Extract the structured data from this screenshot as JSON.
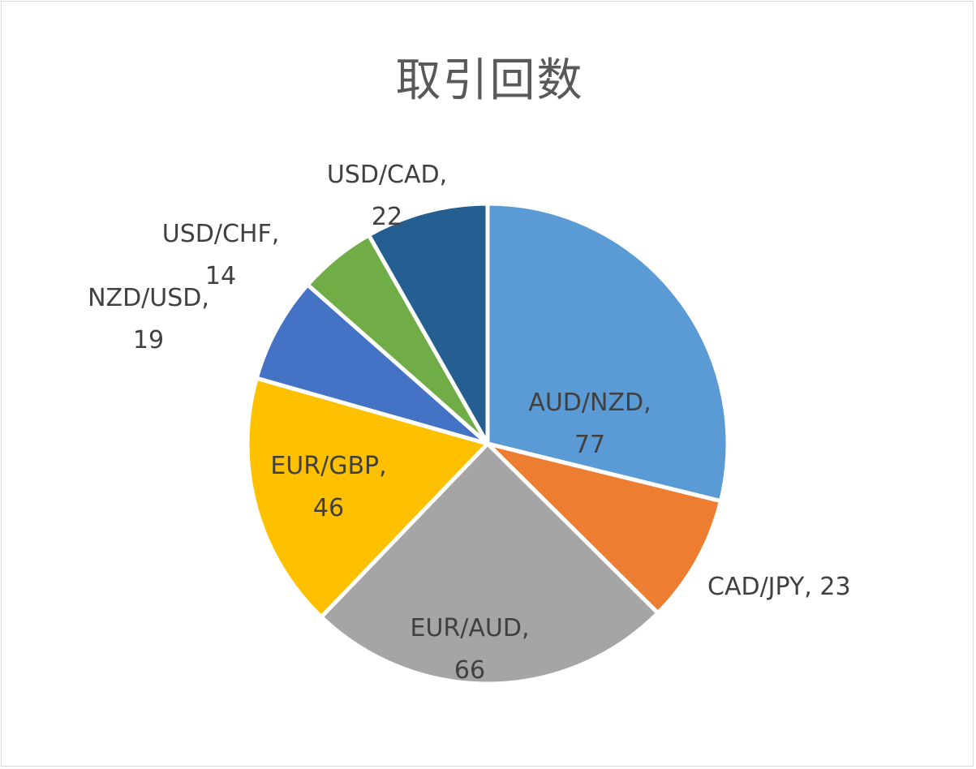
{
  "chart_data": {
    "type": "pie",
    "title": "取引回数",
    "slices": [
      {
        "label_lines": [
          "AUD/NZD,",
          "77"
        ],
        "category": "AUD/NZD",
        "value": 77,
        "color": "#5b9bd5"
      },
      {
        "label_lines": [
          "CAD/JPY, 23"
        ],
        "category": "CAD/JPY",
        "value": 23,
        "color": "#ed7d31"
      },
      {
        "label_lines": [
          "EUR/AUD,",
          "66"
        ],
        "category": "EUR/AUD",
        "value": 66,
        "color": "#a5a5a5"
      },
      {
        "label_lines": [
          "EUR/GBP,",
          "46"
        ],
        "category": "EUR/GBP",
        "value": 46,
        "color": "#ffc000"
      },
      {
        "label_lines": [
          "NZD/USD,",
          "19"
        ],
        "category": "NZD/USD",
        "value": 19,
        "color": "#4472c4"
      },
      {
        "label_lines": [
          "USD/CHF,",
          "14"
        ],
        "category": "USD/CHF",
        "value": 14,
        "color": "#70ad47"
      },
      {
        "label_lines": [
          "USD/CAD,",
          "22"
        ],
        "category": "USD/CAD",
        "value": 22,
        "color": "#255e91"
      }
    ],
    "start_angle": "12 o'clock",
    "direction": "clockwise",
    "legend": "none",
    "data_labels": "category and value"
  }
}
